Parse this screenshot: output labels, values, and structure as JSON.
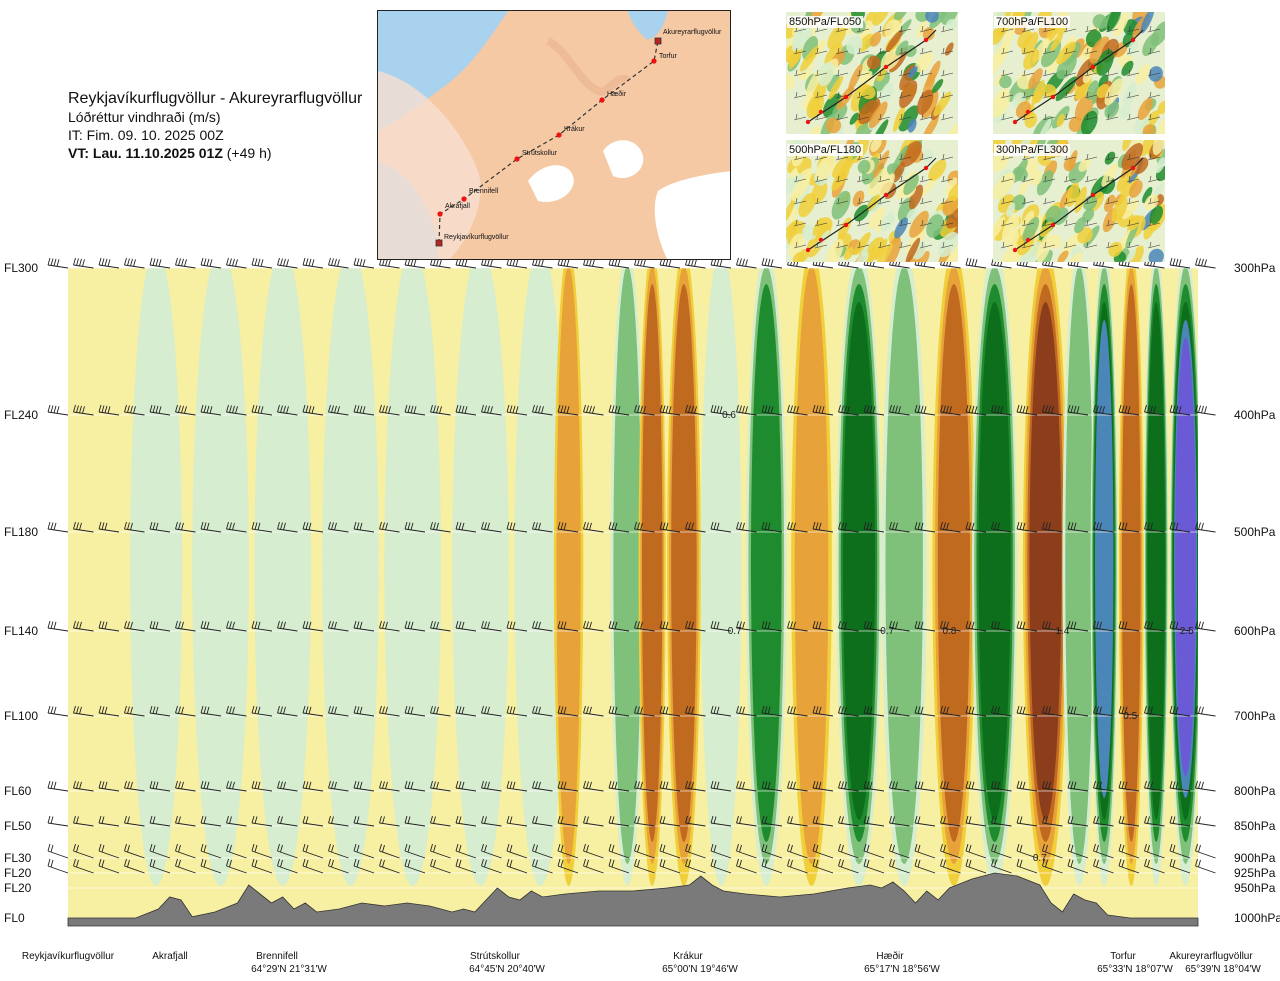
{
  "header": {
    "route": "Reykjavíkurflugvöllur - Akureyrarflugvöllur",
    "parameter": "Lóðréttur vindhraði (m/s)",
    "issue_time": "IT: Fim. 09. 10. 2025 00Z",
    "valid_time": "VT: Lau. 11.10.2025 01Z",
    "lead_time": "(+49 h)"
  },
  "route_map": {
    "waypoints": [
      "Reykjavíkurflugvöllur",
      "Akrafjall",
      "Brennifell",
      "Strútskollur",
      "Krákur",
      "Hæðir",
      "Torfur",
      "Akureyrarflugvöllur"
    ]
  },
  "mini_maps": [
    {
      "label": "850hPa/FL050"
    },
    {
      "label": "700hPa/FL100"
    },
    {
      "label": "500hPa/FL180"
    },
    {
      "label": "300hPa/FL300"
    }
  ],
  "colors": {
    "sink_strong": "#8b3d1c",
    "sink_mid": "#c06a1f",
    "sink_weak": "#e8a23a",
    "sink_light": "#f0cf3a",
    "neutral": "#f7efa2",
    "rise_light": "#d6edcf",
    "rise_mid": "#7fc07a",
    "rise_strong": "#1e8c2e",
    "rise_very": "#0d6e1c",
    "rise_blue": "#4b86b8",
    "rise_purple": "#6a5ad6",
    "terrain": "#7a7a7a"
  },
  "chart_data": {
    "type": "heatmap",
    "title": "Lóðréttur vindhraði (m/s)",
    "levels_fl": [
      {
        "label": "FL300",
        "hpa": "300hPa",
        "pressure": 300
      },
      {
        "label": "FL240",
        "hpa": "400hPa",
        "pressure": 400
      },
      {
        "label": "FL180",
        "hpa": "500hPa",
        "pressure": 500
      },
      {
        "label": "FL140",
        "hpa": "600hPa",
        "pressure": 600
      },
      {
        "label": "FL100",
        "hpa": "700hPa",
        "pressure": 700
      },
      {
        "label": "FL60",
        "hpa": "800hPa",
        "pressure": 800
      },
      {
        "label": "FL50",
        "hpa": "850hPa",
        "pressure": 850
      },
      {
        "label": "FL30",
        "hpa": "900hPa",
        "pressure": 900
      },
      {
        "label": "FL20",
        "hpa": "925hPa",
        "pressure": 925
      },
      {
        "label": "FL20",
        "hpa": "950hPa",
        "pressure": 950
      },
      {
        "label": "FL0",
        "hpa": "1000hPa",
        "pressure": 1000
      }
    ],
    "sites": [
      {
        "name": "Reykjavíkurflugvöllur",
        "coord": "",
        "dist": 0
      },
      {
        "name": "Akrafjall",
        "coord": "",
        "dist": 0.09
      },
      {
        "name": "Brennifell",
        "coord": "64°29'N 21°31'W",
        "dist": 0.19
      },
      {
        "name": "Strútskollur",
        "coord": "64°45'N 20°40'W",
        "dist": 0.38
      },
      {
        "name": "Krákur",
        "coord": "65°00'N 19°46'W",
        "dist": 0.56
      },
      {
        "name": "Hæðir",
        "coord": "65°17'N 18°56'W",
        "dist": 0.75
      },
      {
        "name": "Torfur",
        "coord": "65°33'N 18°07'W",
        "dist": 0.94
      },
      {
        "name": "Akureyrarflugvöllur",
        "coord": "65°39'N 18°04'W",
        "dist": 1.0
      }
    ],
    "bands": [
      {
        "dist": 0.0,
        "w": 0.05
      },
      {
        "dist": 0.055,
        "w": 0.046
      },
      {
        "dist": 0.11,
        "w": 0.05
      },
      {
        "dist": 0.165,
        "w": 0.05
      },
      {
        "dist": 0.225,
        "w": 0.05
      },
      {
        "dist": 0.28,
        "w": 0.05
      },
      {
        "dist": 0.34,
        "w": 0.05
      },
      {
        "dist": 0.395,
        "w": 0.046
      },
      {
        "dist": 0.43,
        "w": 0.026
      },
      {
        "dist": 0.455,
        "w": 0.026
      },
      {
        "dist": 0.48,
        "w": 0.03
      },
      {
        "dist": 0.505,
        "w": 0.024
      },
      {
        "dist": 0.53,
        "w": 0.03
      },
      {
        "dist": 0.56,
        "w": 0.036
      },
      {
        "dist": 0.6,
        "w": 0.036
      },
      {
        "dist": 0.64,
        "w": 0.036
      },
      {
        "dist": 0.68,
        "w": 0.04
      },
      {
        "dist": 0.72,
        "w": 0.04
      },
      {
        "dist": 0.765,
        "w": 0.038
      },
      {
        "dist": 0.8,
        "w": 0.04
      },
      {
        "dist": 0.845,
        "w": 0.04
      },
      {
        "dist": 0.88,
        "w": 0.03
      },
      {
        "dist": 0.905,
        "w": 0.024
      },
      {
        "dist": 0.93,
        "w": 0.022
      },
      {
        "dist": 0.952,
        "w": 0.022
      },
      {
        "dist": 0.975,
        "w": 0.028
      }
    ],
    "band_values": [
      0.0,
      0.05,
      0.1,
      0.15,
      0.2,
      0.15,
      0.1,
      0.1,
      -0.3,
      0.0,
      0.4,
      -0.5,
      -0.6,
      0.2,
      0.6,
      -0.3,
      0.7,
      0.3,
      -0.6,
      0.7,
      -0.8,
      0.4,
      1.4,
      -0.5,
      0.8,
      2.5
    ],
    "isoline_labels": [
      {
        "text": "0.6",
        "dist": 0.585,
        "pressure": 400
      },
      {
        "text": "0.7",
        "dist": 0.59,
        "pressure": 600
      },
      {
        "text": "0.7",
        "dist": 0.725,
        "pressure": 600
      },
      {
        "text": "0.8",
        "dist": 0.78,
        "pressure": 600
      },
      {
        "text": "1.4",
        "dist": 0.88,
        "pressure": 600
      },
      {
        "text": "2.5",
        "dist": 0.99,
        "pressure": 600
      },
      {
        "text": "0.5",
        "dist": 0.94,
        "pressure": 700
      },
      {
        "text": "0.7",
        "dist": 0.86,
        "pressure": 900
      }
    ],
    "terrain_profile": [
      [
        0.0,
        1000
      ],
      [
        0.06,
        1000
      ],
      [
        0.08,
        985
      ],
      [
        0.09,
        965
      ],
      [
        0.1,
        970
      ],
      [
        0.11,
        998
      ],
      [
        0.13,
        990
      ],
      [
        0.15,
        975
      ],
      [
        0.16,
        945
      ],
      [
        0.17,
        960
      ],
      [
        0.18,
        975
      ],
      [
        0.19,
        965
      ],
      [
        0.2,
        985
      ],
      [
        0.21,
        975
      ],
      [
        0.22,
        990
      ],
      [
        0.24,
        985
      ],
      [
        0.26,
        975
      ],
      [
        0.28,
        980
      ],
      [
        0.3,
        975
      ],
      [
        0.32,
        980
      ],
      [
        0.34,
        990
      ],
      [
        0.35,
        985
      ],
      [
        0.36,
        990
      ],
      [
        0.37,
        970
      ],
      [
        0.38,
        950
      ],
      [
        0.39,
        965
      ],
      [
        0.4,
        970
      ],
      [
        0.41,
        955
      ],
      [
        0.42,
        965
      ],
      [
        0.44,
        960
      ],
      [
        0.47,
        955
      ],
      [
        0.5,
        955
      ],
      [
        0.53,
        950
      ],
      [
        0.55,
        945
      ],
      [
        0.56,
        930
      ],
      [
        0.57,
        945
      ],
      [
        0.58,
        955
      ],
      [
        0.6,
        960
      ],
      [
        0.63,
        965
      ],
      [
        0.66,
        960
      ],
      [
        0.69,
        950
      ],
      [
        0.71,
        945
      ],
      [
        0.72,
        950
      ],
      [
        0.73,
        940
      ],
      [
        0.74,
        955
      ],
      [
        0.75,
        975
      ],
      [
        0.76,
        955
      ],
      [
        0.77,
        970
      ],
      [
        0.78,
        950
      ],
      [
        0.8,
        935
      ],
      [
        0.82,
        925
      ],
      [
        0.84,
        930
      ],
      [
        0.86,
        945
      ],
      [
        0.87,
        975
      ],
      [
        0.88,
        990
      ],
      [
        0.89,
        960
      ],
      [
        0.9,
        970
      ],
      [
        0.91,
        975
      ],
      [
        0.92,
        995
      ],
      [
        0.94,
        1000
      ],
      [
        1.0,
        1000
      ]
    ],
    "ylim": [
      300,
      1000
    ],
    "xlim": [
      0,
      1
    ]
  }
}
